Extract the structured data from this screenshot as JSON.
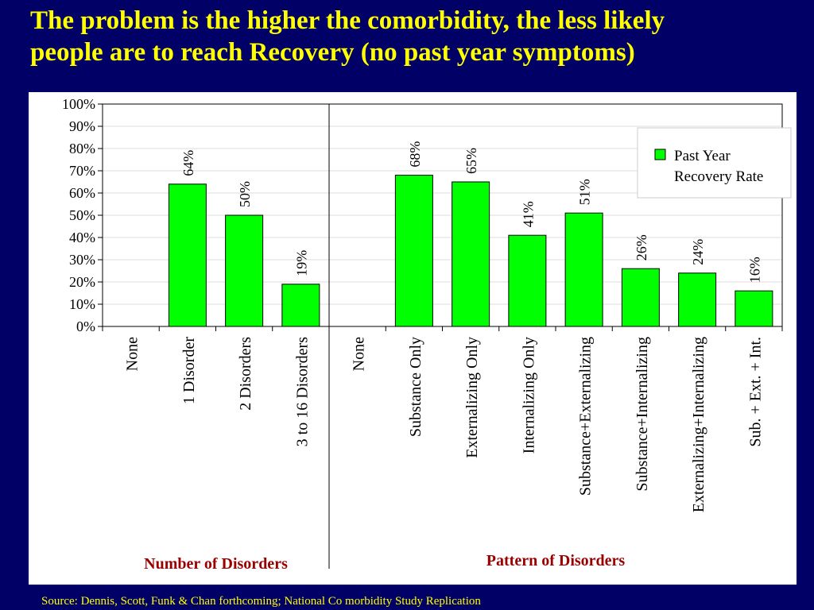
{
  "slide": {
    "title_line1": "The problem is the higher the comorbidity, the less likely",
    "title_line2": "people are to reach Recovery (no past year symptoms)",
    "source": "Source: Dennis, Scott, Funk & Chan forthcoming;  National Co morbidity Study Replication"
  },
  "colors": {
    "background": "#000066",
    "title": "#ffff00",
    "bar": "#00ff00",
    "group_label": "#990000"
  },
  "chart_data": {
    "type": "bar",
    "categories": [
      "None",
      "1 Disorder",
      "2 Disorders",
      "3 to 16 Disorders",
      "None",
      "Substance Only",
      "Externalizing Only",
      "Internalizing Only",
      "Substance+Externalizing",
      "Substance+Internalizing",
      "Externalizing+Internalizing",
      "Sub. + Ext.  + Int."
    ],
    "series": [
      {
        "name": "Past Year Recovery Rate",
        "legend_line1": "Past Year",
        "legend_line2": "Recovery Rate",
        "values": [
          null,
          64,
          50,
          19,
          null,
          68,
          65,
          41,
          51,
          26,
          24,
          16
        ],
        "labels": [
          "",
          "64%",
          "50%",
          "19%",
          "",
          "68%",
          "65%",
          "41%",
          "51%",
          "26%",
          "24%",
          "16%"
        ]
      }
    ],
    "yticks": [
      "0%",
      "10%",
      "20%",
      "30%",
      "40%",
      "50%",
      "60%",
      "70%",
      "80%",
      "90%",
      "100%"
    ],
    "ylim": [
      0,
      100
    ],
    "groups": [
      {
        "label": "Number of Disorders",
        "start": 0,
        "end": 3
      },
      {
        "label": "Pattern of Disorders",
        "start": 4,
        "end": 11
      }
    ],
    "grid": true,
    "legend_position": "top-right"
  }
}
